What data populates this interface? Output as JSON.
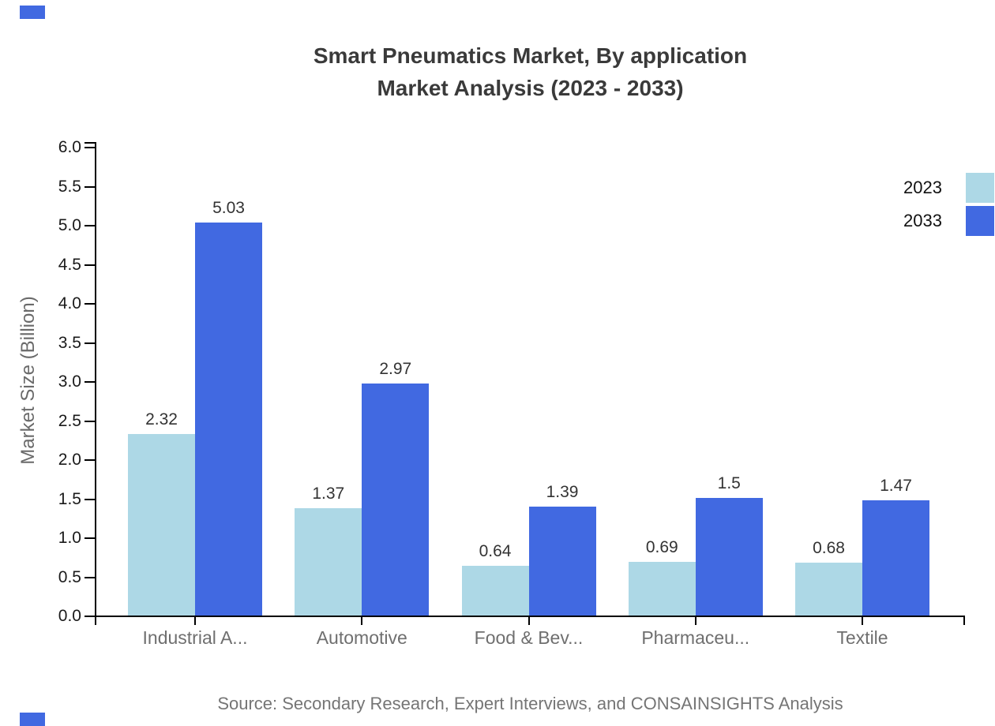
{
  "title": {
    "line1": "Smart Pneumatics Market, By application",
    "line2": "Market Analysis (2023 - 2033)"
  },
  "source": "Source: Secondary Research, Expert Interviews, and CONSAINSIGHTS Analysis",
  "chart_data": {
    "type": "bar",
    "title": "Smart Pneumatics Market, By application Market Analysis (2023 - 2033)",
    "categories": [
      "Industrial A...",
      "Automotive",
      "Food & Bev...",
      "Pharmaceu...",
      "Textile"
    ],
    "series": [
      {
        "name": "2023",
        "color": "#ADD8E6",
        "values": [
          2.32,
          1.37,
          0.64,
          0.69,
          0.68
        ]
      },
      {
        "name": "2033",
        "color": "#4169E1",
        "values": [
          5.03,
          2.97,
          1.39,
          1.5,
          1.47
        ]
      }
    ],
    "xlabel": "",
    "ylabel": "Market Size (Billion)",
    "ylim": [
      0,
      6
    ],
    "ytick_step": 0.5,
    "ytick_labels": [
      "0.0",
      "0.5",
      "1.0",
      "1.5",
      "2.0",
      "2.5",
      "3.0",
      "3.5",
      "4.0",
      "4.5",
      "5.0",
      "5.5",
      "6.0"
    ],
    "bar_value_labels": true,
    "grid": false,
    "legend_position": "top-right"
  },
  "colors": {
    "series_2023": "#ADD8E6",
    "series_2033": "#4169E1",
    "axis": "#000000",
    "title_text": "#3a3a3a",
    "muted_text": "#6f6f6f",
    "value_label_text": "#333333",
    "corner_mark": "#4169E1"
  }
}
